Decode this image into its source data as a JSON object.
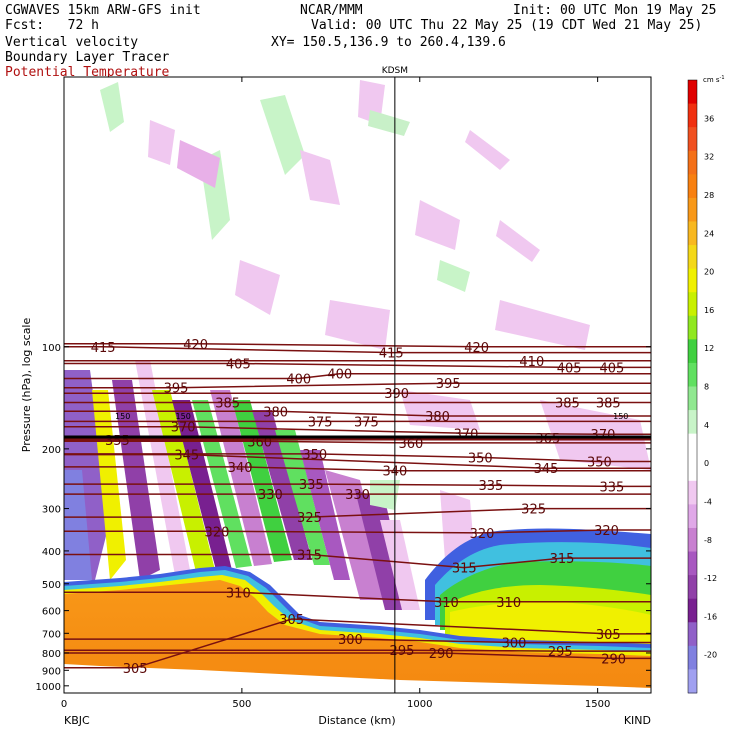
{
  "header": {
    "model": "CGWAVES 15km ARW-GFS init",
    "fcst": "Fcst:   72 h",
    "org": "NCAR/MMM",
    "init": "Init: 00 UTC Mon 19 May 25",
    "valid": "Valid: 00 UTC Thu 22 May 25 (19 CDT Wed 21 May 25)",
    "xy": "XY= 150.5,136.9 to 260.4,139.6",
    "field1": "Vertical velocity",
    "field2": "Boundary Layer Tracer",
    "field3": "Potential Temperature",
    "field3_color": "#b01010"
  },
  "chart_data": {
    "type": "heatmap",
    "title": "",
    "xlabel": "Distance (km)",
    "ylabel": "Pressure (hPa), log scale",
    "x_range": [
      0,
      1650
    ],
    "y_range": [
      1050,
      16
    ],
    "y_log": true,
    "x_ticks": [
      0,
      500,
      1000,
      1500
    ],
    "y_ticks": [
      100,
      200,
      300,
      400,
      500,
      600,
      700,
      800,
      900,
      1000
    ],
    "station_marker": {
      "label": "KDSM",
      "x": 930
    },
    "endpoints": {
      "left": "KBJC",
      "right": "KIND"
    },
    "colorbar": {
      "unit": "cm s",
      "unit_exp": "-1",
      "ticks": [
        36,
        32,
        28,
        24,
        20,
        16,
        12,
        8,
        4,
        0,
        -4,
        -8,
        -12,
        -16,
        -20
      ],
      "colors": [
        "#e00000",
        "#f03010",
        "#f05020",
        "#f47018",
        "#f88010",
        "#f89818",
        "#f8b820",
        "#f4d818",
        "#f0f000",
        "#c8f000",
        "#90e820",
        "#40d040",
        "#60e060",
        "#90e890",
        "#c8f4c8",
        "#ffffff",
        "#ffffff",
        "#f0c8f0",
        "#e0a8e8",
        "#c880d0",
        "#a858c0",
        "#9040a8",
        "#782090",
        "#9060c8",
        "#8080e0",
        "#a0a0f0"
      ]
    },
    "theta_labels": [
      {
        "v": 415,
        "x": 110,
        "p": 100
      },
      {
        "v": 420,
        "x": 370,
        "p": 98
      },
      {
        "v": 415,
        "x": 920,
        "p": 104
      },
      {
        "v": 420,
        "x": 1160,
        "p": 100
      },
      {
        "v": 410,
        "x": 1315,
        "p": 110
      },
      {
        "v": 405,
        "x": 1420,
        "p": 115
      },
      {
        "v": 405,
        "x": 1540,
        "p": 115
      },
      {
        "v": 405,
        "x": 490,
        "p": 112
      },
      {
        "v": 400,
        "x": 660,
        "p": 124
      },
      {
        "v": 400,
        "x": 775,
        "p": 120
      },
      {
        "v": 395,
        "x": 315,
        "p": 132
      },
      {
        "v": 395,
        "x": 1080,
        "p": 128
      },
      {
        "v": 390,
        "x": 935,
        "p": 137
      },
      {
        "v": 385,
        "x": 460,
        "p": 146
      },
      {
        "v": 380,
        "x": 595,
        "p": 155
      },
      {
        "v": 385,
        "x": 1415,
        "p": 146
      },
      {
        "v": 385,
        "x": 1530,
        "p": 146
      },
      {
        "v": 380,
        "x": 1050,
        "p": 160
      },
      {
        "v": 375,
        "x": 720,
        "p": 166
      },
      {
        "v": 375,
        "x": 850,
        "p": 166
      },
      {
        "v": 370,
        "x": 335,
        "p": 172
      },
      {
        "v": 370,
        "x": 1130,
        "p": 180
      },
      {
        "v": 365,
        "x": 1360,
        "p": 186
      },
      {
        "v": 370,
        "x": 1515,
        "p": 181
      },
      {
        "v": 355,
        "x": 150,
        "p": 188
      },
      {
        "v": 360,
        "x": 550,
        "p": 190
      },
      {
        "v": 360,
        "x": 975,
        "p": 192
      },
      {
        "v": 345,
        "x": 345,
        "p": 208
      },
      {
        "v": 350,
        "x": 705,
        "p": 207
      },
      {
        "v": 350,
        "x": 1170,
        "p": 212
      },
      {
        "v": 340,
        "x": 495,
        "p": 226
      },
      {
        "v": 345,
        "x": 1355,
        "p": 228
      },
      {
        "v": 350,
        "x": 1505,
        "p": 218
      },
      {
        "v": 340,
        "x": 930,
        "p": 232
      },
      {
        "v": 335,
        "x": 695,
        "p": 254
      },
      {
        "v": 335,
        "x": 1200,
        "p": 256
      },
      {
        "v": 335,
        "x": 1540,
        "p": 258
      },
      {
        "v": 330,
        "x": 580,
        "p": 272
      },
      {
        "v": 330,
        "x": 825,
        "p": 272
      },
      {
        "v": 325,
        "x": 1320,
        "p": 300
      },
      {
        "v": 325,
        "x": 690,
        "p": 318
      },
      {
        "v": 320,
        "x": 430,
        "p": 350
      },
      {
        "v": 320,
        "x": 1175,
        "p": 354
      },
      {
        "v": 320,
        "x": 1525,
        "p": 347
      },
      {
        "v": 315,
        "x": 690,
        "p": 410
      },
      {
        "v": 315,
        "x": 1125,
        "p": 448
      },
      {
        "v": 315,
        "x": 1400,
        "p": 420
      },
      {
        "v": 310,
        "x": 490,
        "p": 530
      },
      {
        "v": 310,
        "x": 1075,
        "p": 565
      },
      {
        "v": 310,
        "x": 1250,
        "p": 565
      },
      {
        "v": 305,
        "x": 640,
        "p": 635
      },
      {
        "v": 305,
        "x": 1530,
        "p": 703
      },
      {
        "v": 300,
        "x": 805,
        "p": 728
      },
      {
        "v": 300,
        "x": 1265,
        "p": 745
      },
      {
        "v": 295,
        "x": 950,
        "p": 785
      },
      {
        "v": 290,
        "x": 1060,
        "p": 800
      },
      {
        "v": 295,
        "x": 1395,
        "p": 790
      },
      {
        "v": 290,
        "x": 1545,
        "p": 830
      },
      {
        "v": 305,
        "x": 200,
        "p": 885
      }
    ],
    "bl_top_labels": [
      {
        "v": 150,
        "x": 165,
        "p": 159
      },
      {
        "v": 150,
        "x": 335,
        "p": 159
      },
      {
        "v": 150,
        "x": 1565,
        "p": 159
      }
    ]
  }
}
